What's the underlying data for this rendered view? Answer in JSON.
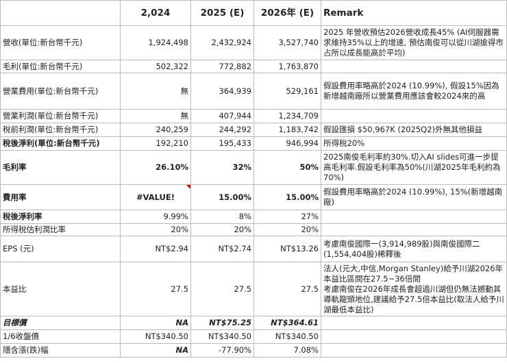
{
  "table": {
    "header": [
      "2,024",
      "2025 (E)",
      "2026年 (E)",
      "Remark"
    ],
    "rows": [
      {
        "label": "營收(單位:新台幣千元)",
        "values": [
          "1,924,498",
          "2,432,924",
          "3,527,740"
        ],
        "remark": [
          "2025 年營收預估2026營收成長45% (AI伺服器需求維持35%以上的增速, 預估南俊可以從川湖搶得市占所以成長能高於平均)"
        ]
      },
      {
        "label": "毛利(單位:新台幣千元)",
        "values": [
          "502,322",
          "772,882",
          "1,763,870"
        ]
      },
      {
        "label": "營業費用(單位:新台幣千元)",
        "values": [
          "無",
          "364,939",
          "529,161"
        ],
        "remark": [
          "假設費用率略高於2024 (10.99%), 假設15%因為新增越南廠所以營業費用應該會較2024來的高"
        ]
      },
      {
        "label": "營業利潤(單位:新台幣千元)",
        "values": [
          "無",
          "407,944",
          "1,234,709"
        ]
      },
      {
        "label": "稅前利潤(單位:新台幣千元)",
        "values": [
          "240,259",
          "244,292",
          "1,183,742"
        ],
        "remark": [
          "假設匯損 $50,967K (2025Q2)外無其他損益"
        ]
      },
      {
        "label": "稅後淨利(單位:新台幣千元)",
        "values": [
          "192,210",
          "195,433",
          "946,994"
        ],
        "remark": [
          "所得稅20%"
        ]
      },
      {
        "label": "毛利率",
        "values": [
          "26.10%",
          "32%",
          "50%"
        ],
        "remark": [
          "2025南俊毛利率約30%.切入AI slides可進一步提高毛利率.假設毛利率為50%(川湖2025年毛利約為70%)"
        ]
      },
      {
        "label": "費用率",
        "values": [
          "#VALUE!",
          "15.00%",
          "15.00%"
        ],
        "remark": [
          "假設費用率略高於2024 (10.99%), 15%(新增越南廠)"
        ]
      },
      {
        "label": "稅後淨利率",
        "values": [
          "9.99%",
          "8%",
          "27%"
        ]
      },
      {
        "label": "所得稅估利潤比率",
        "values": [
          "20%",
          "20%",
          "20%"
        ]
      },
      {
        "label": "EPS (元)",
        "values": [
          "NT$2.94",
          "NT$2.74",
          "NT$13.26"
        ],
        "remark": [
          "考慮南俊國際一(3,914,989股)與南俊國際二(1,554,404股)稀釋後"
        ]
      },
      {
        "label": "本益比",
        "values": [
          "27.5",
          "27.5",
          "27.5"
        ],
        "remark": [
          "法人(元大,中信,Morgan Stanley)給予川湖2026年本益比區間在27.5~36倍間",
          "考慮南俊在2026年成長會超過川湖但仍無法撼動其導軌龍頭地位,建議給予27.5倍本益比(取法人給予川湖最低本益比)"
        ]
      },
      {
        "label": "目標價",
        "values": [
          "NA",
          "NT$75.25",
          "NT$364.61"
        ]
      },
      {
        "label": "1/6收盤價",
        "values": [
          "NT$340.50",
          "NT$340.50",
          "NT$340.50"
        ]
      },
      {
        "label": "隱含漲(跌)幅",
        "values": [
          "NA",
          "-77.90%",
          "7.08%"
        ]
      }
    ]
  }
}
